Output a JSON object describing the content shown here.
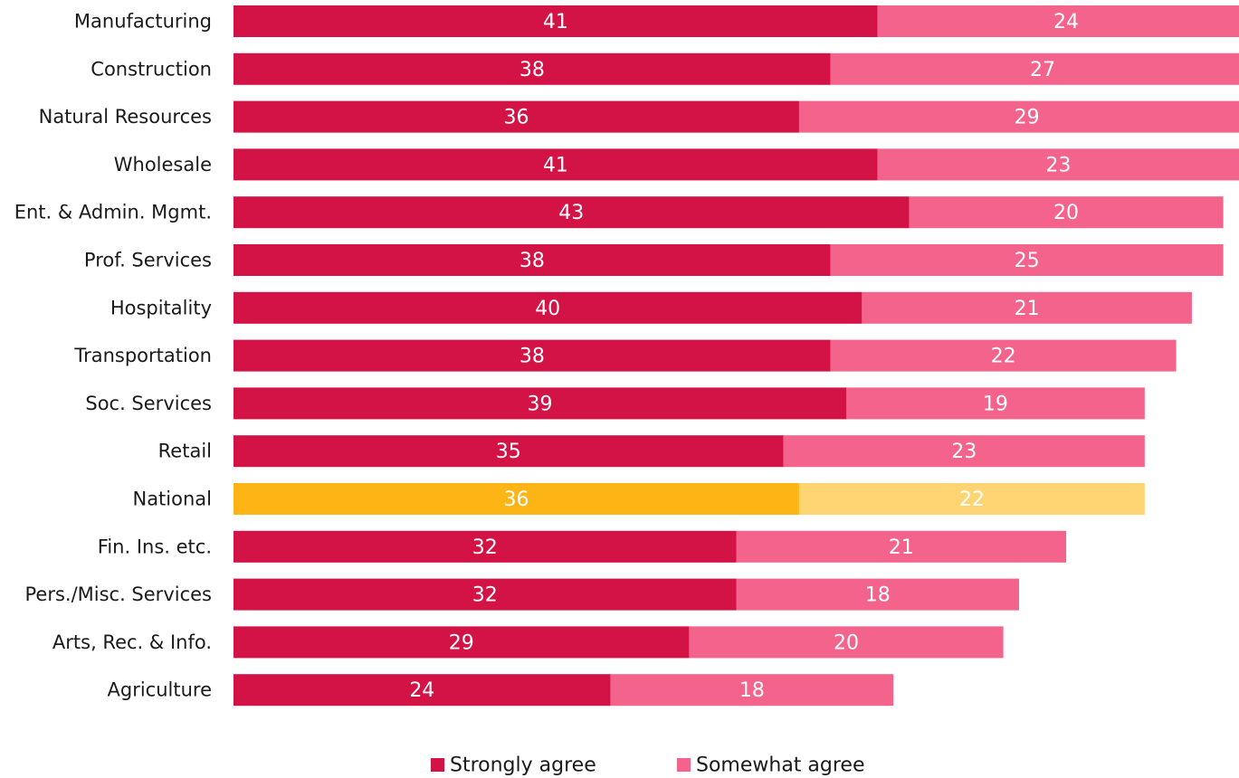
{
  "chart_data": {
    "type": "bar",
    "orientation": "horizontal",
    "stacked": true,
    "categories": [
      "Manufacturing",
      "Construction",
      "Natural Resources",
      "Wholesale",
      "Ent. & Admin. Mgmt.",
      "Prof. Services",
      "Hospitality",
      "Transportation",
      "Soc. Services",
      "Retail",
      "National",
      "Fin. Ins. etc.",
      "Pers./Misc. Services",
      "Arts, Rec. & Info.",
      "Agriculture"
    ],
    "series": [
      {
        "name": "Strongly agree",
        "color": "#d31245",
        "values": [
          41,
          38,
          36,
          41,
          43,
          38,
          40,
          38,
          39,
          35,
          36,
          32,
          32,
          29,
          24
        ]
      },
      {
        "name": "Somewhat agree",
        "color": "#f4638c",
        "values": [
          24,
          27,
          29,
          23,
          20,
          25,
          21,
          22,
          19,
          23,
          22,
          21,
          18,
          20,
          18
        ]
      }
    ],
    "highlight": {
      "category": "National",
      "colors": [
        "#fdb515",
        "#ffd473"
      ]
    },
    "xlim": [
      0,
      64
    ],
    "title": "",
    "xlabel": "",
    "ylabel": "",
    "grid": false,
    "legend_position": "bottom",
    "data_labels": true
  }
}
